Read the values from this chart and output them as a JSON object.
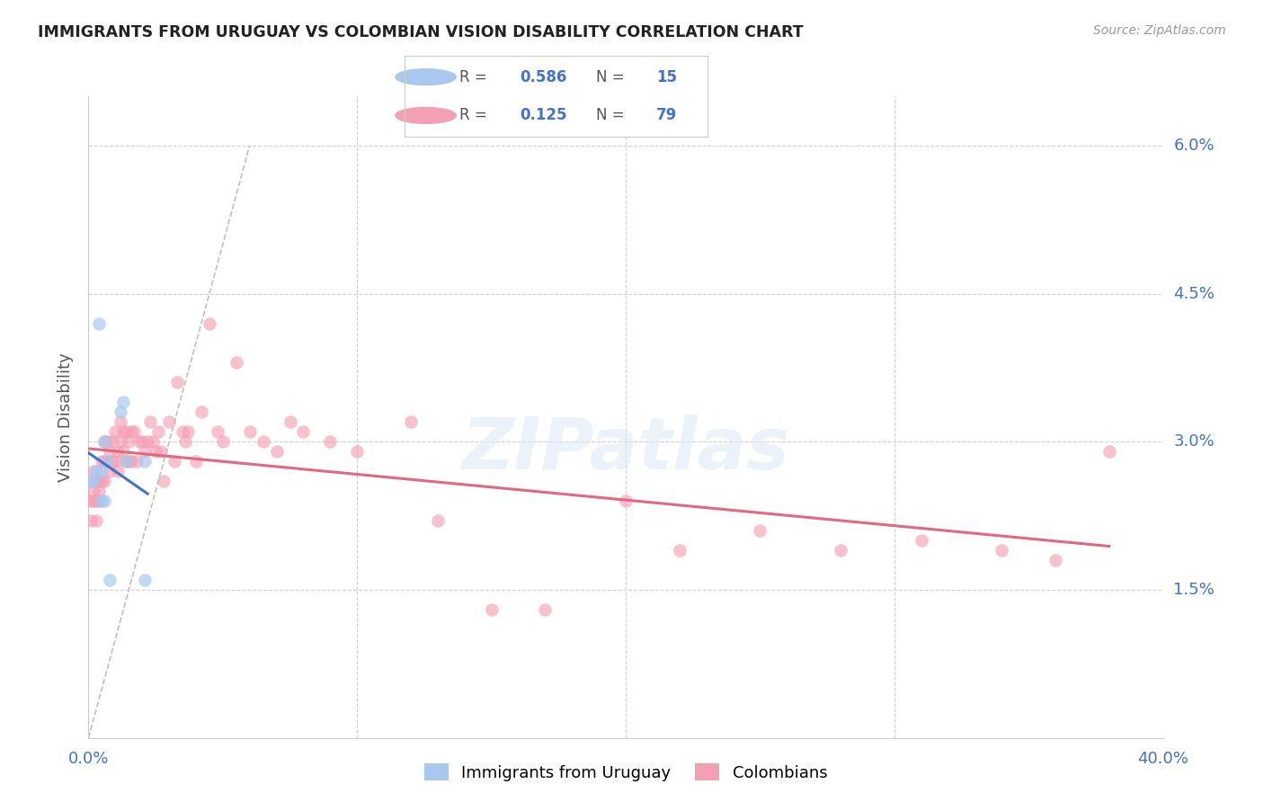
{
  "title": "IMMIGRANTS FROM URUGUAY VS COLOMBIAN VISION DISABILITY CORRELATION CHART",
  "source": "Source: ZipAtlas.com",
  "ylabel": "Vision Disability",
  "ytick_vals": [
    0.015,
    0.03,
    0.045,
    0.06
  ],
  "ytick_labels": [
    "1.5%",
    "3.0%",
    "4.5%",
    "6.0%"
  ],
  "xlim": [
    0.0,
    0.4
  ],
  "ylim": [
    0.0,
    0.065
  ],
  "color_uruguay": "#a8c8f0",
  "color_colombia": "#f4a0b4",
  "color_line_uruguay": "#4472c4",
  "color_line_colombia": "#e06880",
  "color_axis": "#4472c4",
  "color_title": "#222222",
  "color_source": "#999999",
  "color_grid": "#cccccc",
  "watermark": "ZIPatlas",
  "r_uruguay": "0.586",
  "n_uruguay": "15",
  "r_colombia": "0.125",
  "n_colombia": "79",
  "uruguay_x": [
    0.001,
    0.002,
    0.003,
    0.004,
    0.005,
    0.005,
    0.006,
    0.006,
    0.007,
    0.008,
    0.012,
    0.013,
    0.014,
    0.021,
    0.021
  ],
  "uruguay_y": [
    0.026,
    0.026,
    0.027,
    0.042,
    0.027,
    0.024,
    0.024,
    0.03,
    0.028,
    0.016,
    0.033,
    0.034,
    0.028,
    0.028,
    0.016
  ],
  "colombia_x": [
    0.001,
    0.001,
    0.002,
    0.002,
    0.002,
    0.003,
    0.003,
    0.003,
    0.004,
    0.004,
    0.004,
    0.005,
    0.005,
    0.006,
    0.006,
    0.006,
    0.007,
    0.007,
    0.008,
    0.008,
    0.009,
    0.009,
    0.01,
    0.01,
    0.011,
    0.011,
    0.012,
    0.012,
    0.013,
    0.013,
    0.014,
    0.014,
    0.015,
    0.015,
    0.016,
    0.016,
    0.017,
    0.018,
    0.019,
    0.02,
    0.021,
    0.022,
    0.023,
    0.024,
    0.025,
    0.026,
    0.027,
    0.028,
    0.03,
    0.032,
    0.033,
    0.035,
    0.036,
    0.037,
    0.04,
    0.042,
    0.045,
    0.048,
    0.05,
    0.055,
    0.06,
    0.065,
    0.07,
    0.075,
    0.08,
    0.09,
    0.1,
    0.12,
    0.13,
    0.15,
    0.17,
    0.2,
    0.22,
    0.25,
    0.28,
    0.31,
    0.34,
    0.36,
    0.38
  ],
  "colombia_y": [
    0.024,
    0.022,
    0.027,
    0.025,
    0.024,
    0.026,
    0.024,
    0.022,
    0.026,
    0.025,
    0.024,
    0.028,
    0.026,
    0.03,
    0.028,
    0.026,
    0.03,
    0.028,
    0.029,
    0.027,
    0.03,
    0.028,
    0.031,
    0.028,
    0.029,
    0.027,
    0.032,
    0.03,
    0.031,
    0.029,
    0.031,
    0.028,
    0.03,
    0.028,
    0.031,
    0.028,
    0.031,
    0.028,
    0.03,
    0.03,
    0.029,
    0.03,
    0.032,
    0.03,
    0.029,
    0.031,
    0.029,
    0.026,
    0.032,
    0.028,
    0.036,
    0.031,
    0.03,
    0.031,
    0.028,
    0.033,
    0.042,
    0.031,
    0.03,
    0.038,
    0.031,
    0.03,
    0.029,
    0.032,
    0.031,
    0.03,
    0.029,
    0.032,
    0.022,
    0.013,
    0.013,
    0.024,
    0.019,
    0.021,
    0.019,
    0.02,
    0.019,
    0.018,
    0.029
  ]
}
